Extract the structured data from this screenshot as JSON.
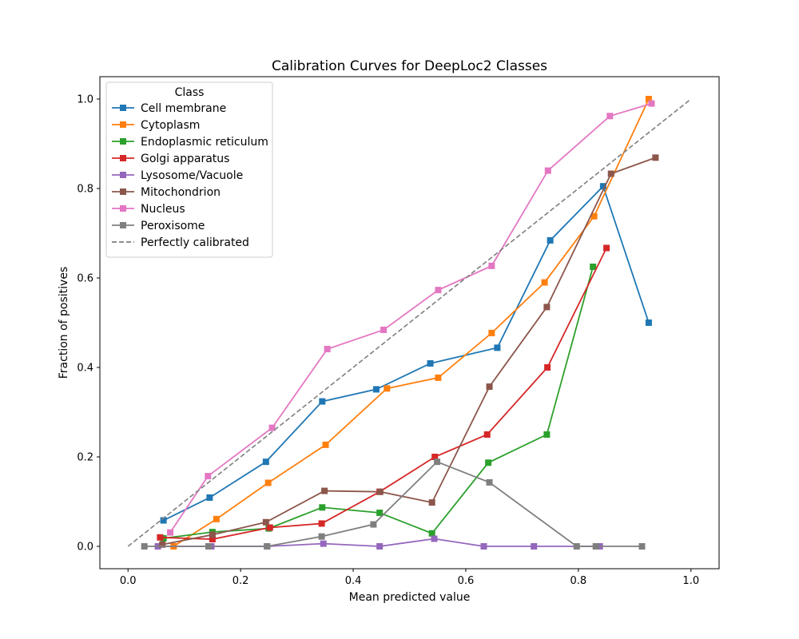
{
  "chart_data": {
    "type": "line",
    "title": "Calibration Curves for DeepLoc2 Classes",
    "xlabel": "Mean predicted value",
    "ylabel": "Fraction of positives",
    "xlim": [
      -0.05,
      1.05
    ],
    "ylim": [
      -0.05,
      1.05
    ],
    "x_ticks": [
      0.0,
      0.2,
      0.4,
      0.6,
      0.8,
      1.0
    ],
    "y_ticks": [
      0.0,
      0.2,
      0.4,
      0.6,
      0.8,
      1.0
    ],
    "x_tick_labels": [
      "0.0",
      "0.2",
      "0.4",
      "0.6",
      "0.8",
      "1.0"
    ],
    "y_tick_labels": [
      "0.0",
      "0.2",
      "0.4",
      "0.6",
      "0.8",
      "1.0"
    ],
    "grid": false,
    "legend": {
      "title": "Class",
      "placement": "top-left"
    },
    "series": [
      {
        "name": "Cell membrane",
        "color": "#1f77b4",
        "marker": "square",
        "x": [
          0.063,
          0.145,
          0.245,
          0.345,
          0.441,
          0.537,
          0.656,
          0.75,
          0.844,
          0.925
        ],
        "y": [
          0.058,
          0.109,
          0.189,
          0.324,
          0.351,
          0.409,
          0.444,
          0.684,
          0.805,
          0.5
        ]
      },
      {
        "name": "Cytoplasm",
        "color": "#ff7f0e",
        "marker": "square",
        "x": [
          0.081,
          0.157,
          0.249,
          0.351,
          0.46,
          0.551,
          0.646,
          0.74,
          0.828,
          0.925
        ],
        "y": [
          0.0,
          0.061,
          0.142,
          0.227,
          0.353,
          0.377,
          0.477,
          0.59,
          0.738,
          1.0
        ]
      },
      {
        "name": "Endoplasmic reticulum",
        "color": "#2ca02c",
        "marker": "square",
        "x": [
          0.063,
          0.15,
          0.25,
          0.345,
          0.447,
          0.54,
          0.64,
          0.744,
          0.826
        ],
        "y": [
          0.018,
          0.032,
          0.04,
          0.087,
          0.075,
          0.029,
          0.187,
          0.25,
          0.625
        ]
      },
      {
        "name": "Golgi apparatus",
        "color": "#d62728",
        "marker": "square",
        "x": [
          0.057,
          0.15,
          0.252,
          0.344,
          0.447,
          0.545,
          0.638,
          0.745,
          0.85
        ],
        "y": [
          0.02,
          0.016,
          0.042,
          0.051,
          0.122,
          0.2,
          0.25,
          0.4,
          0.667
        ]
      },
      {
        "name": "Lysosome/Vacuole",
        "color": "#9467bd",
        "marker": "square",
        "x": [
          0.053,
          0.148,
          0.247,
          0.347,
          0.447,
          0.544,
          0.632,
          0.721,
          0.838
        ],
        "y": [
          0.0,
          0.0,
          0.0,
          0.006,
          0.0,
          0.017,
          0.0,
          0.0,
          0.0
        ]
      },
      {
        "name": "Mitochondrion",
        "color": "#8c564b",
        "marker": "square",
        "x": [
          0.061,
          0.15,
          0.245,
          0.349,
          0.448,
          0.54,
          0.642,
          0.744,
          0.858,
          0.937
        ],
        "y": [
          0.004,
          0.026,
          0.054,
          0.124,
          0.122,
          0.098,
          0.357,
          0.535,
          0.833,
          0.869
        ]
      },
      {
        "name": "Nucleus",
        "color": "#e377c2",
        "marker": "square",
        "x": [
          0.075,
          0.142,
          0.256,
          0.354,
          0.454,
          0.551,
          0.646,
          0.746,
          0.856,
          0.93
        ],
        "y": [
          0.031,
          0.157,
          0.265,
          0.441,
          0.484,
          0.573,
          0.627,
          0.84,
          0.962,
          0.99
        ]
      },
      {
        "name": "Peroxisome",
        "color": "#7f7f7f",
        "marker": "square",
        "x": [
          0.029,
          0.143,
          0.247,
          0.344,
          0.436,
          0.549,
          0.642,
          0.797,
          0.831,
          0.913
        ],
        "y": [
          0.0,
          0.0,
          0.0,
          0.022,
          0.049,
          0.189,
          0.143,
          0.0,
          0.0,
          0.0
        ]
      },
      {
        "name": "Perfectly calibrated",
        "color": "#7f7f7f",
        "dashed": true,
        "x": [
          0.0,
          1.0
        ],
        "y": [
          0.0,
          1.0
        ]
      }
    ]
  }
}
